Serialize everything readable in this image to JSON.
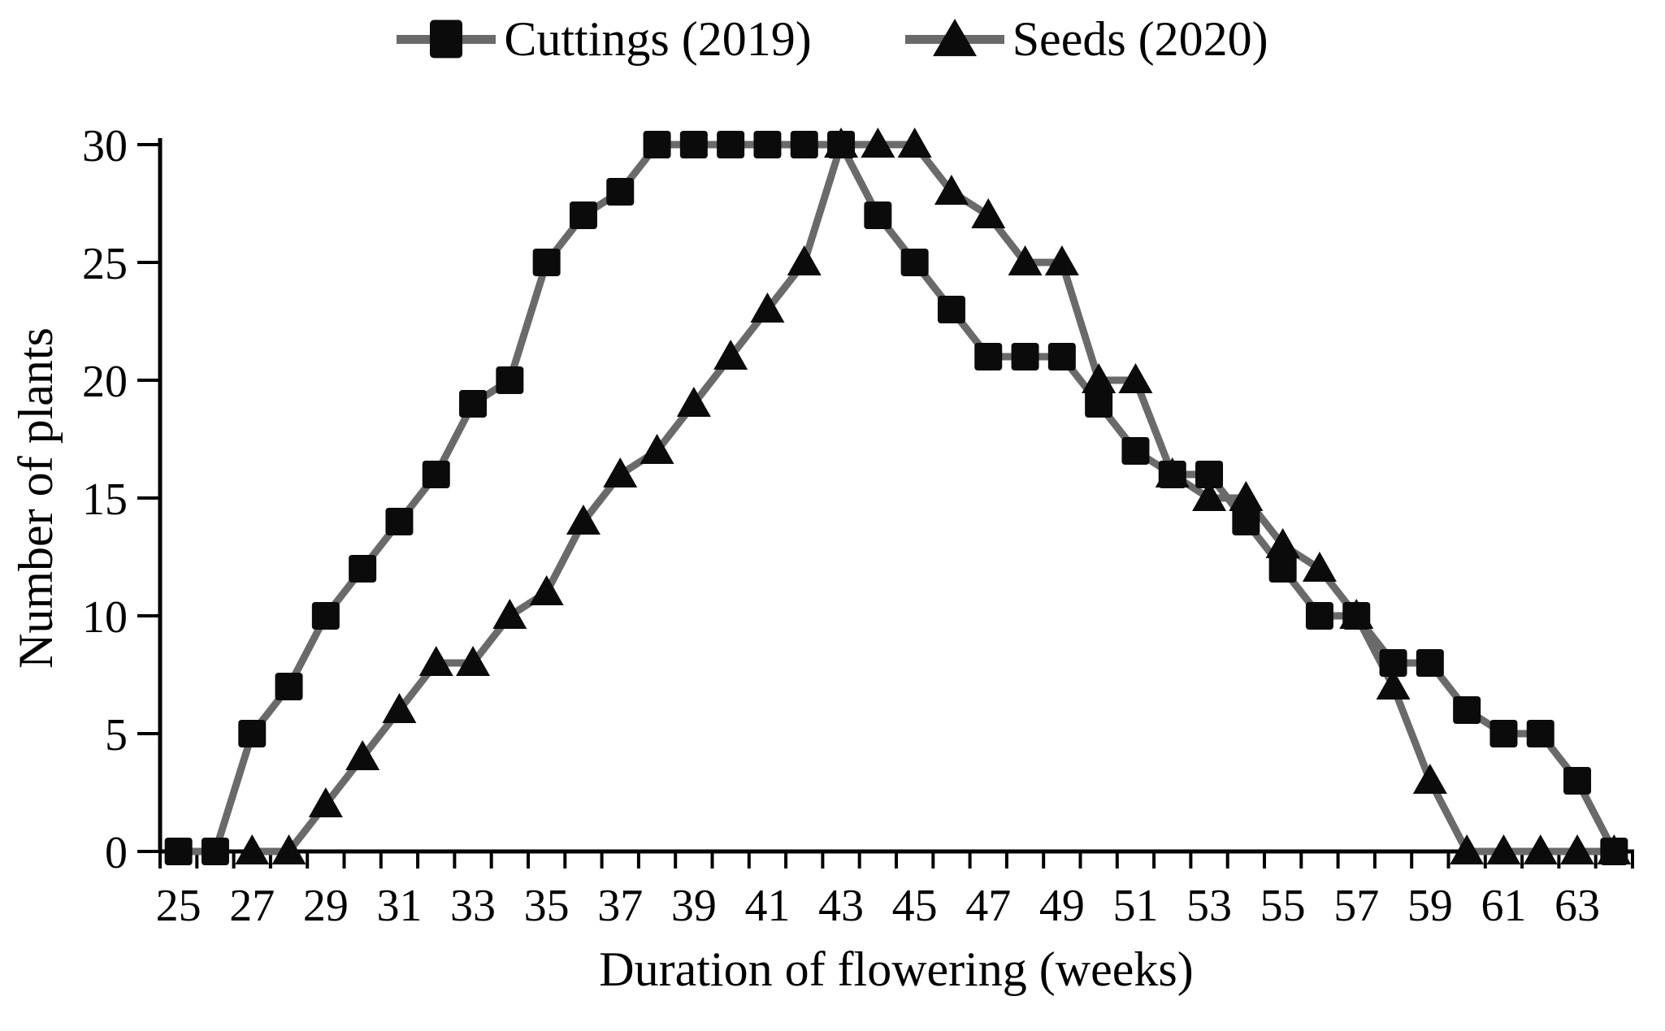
{
  "figure": {
    "background": "#ffffff",
    "marker_black": "#0b0b0b",
    "line_gray": "#6a6a6a",
    "axis_color": "#000000",
    "text_color": "#000000"
  },
  "legend": {
    "position": "top-center",
    "items": [
      {
        "label": "Cuttings (2019)",
        "marker": "square"
      },
      {
        "label": "Seeds (2020)",
        "marker": "triangle"
      }
    ]
  },
  "chart_data": {
    "type": "line",
    "title": "",
    "xlabel": "Duration of flowering (weeks)",
    "ylabel": "Number of plants",
    "x_range": [
      25,
      64
    ],
    "x_tick_labels": [
      25,
      27,
      29,
      31,
      33,
      35,
      37,
      39,
      41,
      43,
      45,
      47,
      49,
      51,
      53,
      55,
      57,
      59,
      61,
      63
    ],
    "y_ticks": [
      0,
      5,
      10,
      15,
      20,
      25,
      30
    ],
    "ylim": [
      0,
      30
    ],
    "grid": false,
    "legend_position": "top-center",
    "series": [
      {
        "name": "Cuttings (2019)",
        "marker": "square",
        "marker_color": "#0b0b0b",
        "line_color": "#6a6a6a",
        "points": [
          [
            25,
            0
          ],
          [
            26,
            0
          ],
          [
            27,
            5
          ],
          [
            28,
            7
          ],
          [
            29,
            10
          ],
          [
            30,
            12
          ],
          [
            31,
            14
          ],
          [
            32,
            16
          ],
          [
            33,
            19
          ],
          [
            34,
            20
          ],
          [
            35,
            25
          ],
          [
            36,
            27
          ],
          [
            37,
            28
          ],
          [
            38,
            30
          ],
          [
            39,
            30
          ],
          [
            40,
            30
          ],
          [
            41,
            30
          ],
          [
            42,
            30
          ],
          [
            43,
            30
          ],
          [
            44,
            27
          ],
          [
            45,
            25
          ],
          [
            46,
            23
          ],
          [
            47,
            21
          ],
          [
            48,
            21
          ],
          [
            49,
            21
          ],
          [
            50,
            19
          ],
          [
            51,
            17
          ],
          [
            52,
            16
          ],
          [
            53,
            16
          ],
          [
            54,
            14
          ],
          [
            55,
            12
          ],
          [
            56,
            10
          ],
          [
            57,
            10
          ],
          [
            58,
            8
          ],
          [
            59,
            8
          ],
          [
            60,
            6
          ],
          [
            61,
            5
          ],
          [
            62,
            5
          ],
          [
            63,
            3
          ],
          [
            64,
            0
          ]
        ]
      },
      {
        "name": "Seeds (2020)",
        "marker": "triangle",
        "marker_color": "#0b0b0b",
        "line_color": "#6a6a6a",
        "points": [
          [
            27,
            0
          ],
          [
            28,
            0
          ],
          [
            29,
            2
          ],
          [
            30,
            4
          ],
          [
            31,
            6
          ],
          [
            32,
            8
          ],
          [
            33,
            8
          ],
          [
            34,
            10
          ],
          [
            35,
            11
          ],
          [
            36,
            14
          ],
          [
            37,
            16
          ],
          [
            38,
            17
          ],
          [
            39,
            19
          ],
          [
            40,
            21
          ],
          [
            41,
            23
          ],
          [
            42,
            25
          ],
          [
            43,
            30
          ],
          [
            44,
            30
          ],
          [
            45,
            30
          ],
          [
            46,
            28
          ],
          [
            47,
            27
          ],
          [
            48,
            25
          ],
          [
            49,
            25
          ],
          [
            50,
            20
          ],
          [
            51,
            20
          ],
          [
            52,
            16
          ],
          [
            53,
            15
          ],
          [
            54,
            15
          ],
          [
            55,
            13
          ],
          [
            56,
            12
          ],
          [
            57,
            10
          ],
          [
            58,
            7
          ],
          [
            59,
            3
          ],
          [
            60,
            0
          ],
          [
            61,
            0
          ],
          [
            62,
            0
          ],
          [
            63,
            0
          ],
          [
            64,
            0
          ]
        ]
      }
    ]
  }
}
